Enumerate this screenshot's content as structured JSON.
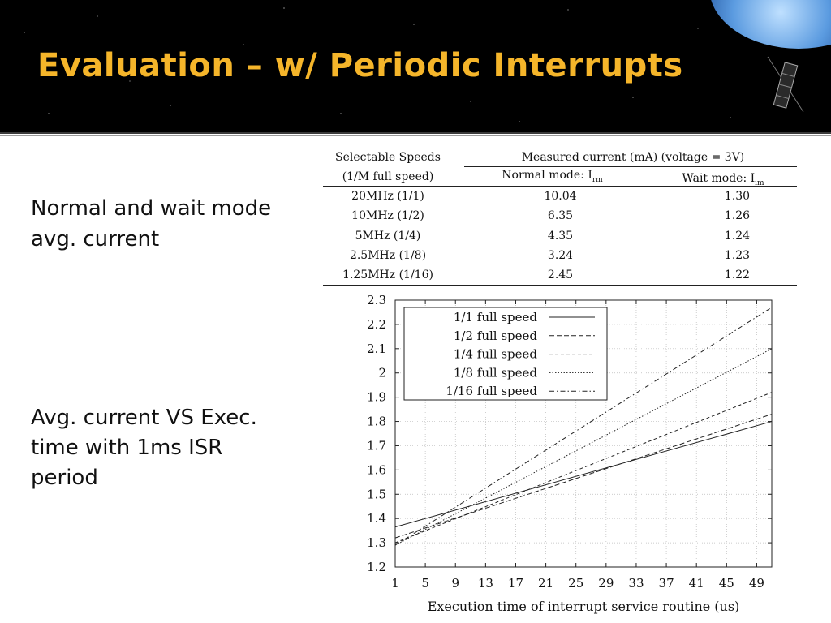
{
  "slide": {
    "title": "Evaluation – w/ Periodic Interrupts",
    "bullets": [
      "Normal and wait mode avg. current",
      "Avg. current VS Exec. time with 1ms ISR period"
    ],
    "satellite_icon": "satellite-icon",
    "earth_icon": "earth-icon"
  },
  "table": {
    "header_speeds_line1": "Selectable Speeds",
    "header_speeds_line2": "(1/M full speed)",
    "header_measured": "Measured current (mA) (voltage = 3V)",
    "header_normal": "Normal mode: I",
    "header_normal_sub": "rm",
    "header_wait": "Wait mode: I",
    "header_wait_sub": "im",
    "rows": [
      {
        "speed": "20MHz  (1/1)",
        "normal": "10.04",
        "wait": "1.30"
      },
      {
        "speed": "10MHz  (1/2)",
        "normal": "6.35",
        "wait": "1.26"
      },
      {
        "speed": "5MHz   (1/4)",
        "normal": "4.35",
        "wait": "1.24"
      },
      {
        "speed": "2.5MHz  (1/8)",
        "normal": "3.24",
        "wait": "1.23"
      },
      {
        "speed": "1.25MHz (1/16)",
        "normal": "2.45",
        "wait": "1.22"
      }
    ]
  },
  "chart_data": {
    "type": "line",
    "title": "",
    "xlabel": "Execution time of interrupt service routine (us)",
    "ylabel": "",
    "xlim": [
      1,
      51
    ],
    "ylim": [
      1.2,
      2.3
    ],
    "xticks": [
      1,
      5,
      9,
      13,
      17,
      21,
      25,
      29,
      33,
      37,
      41,
      45,
      49
    ],
    "yticks": [
      "1.2",
      "1.3",
      "1.4",
      "1.5",
      "1.6",
      "1.7",
      "1.8",
      "1.9",
      "2",
      "2.1",
      "2.2",
      "2.3"
    ],
    "grid": true,
    "legend_position": "top-left",
    "series": [
      {
        "name": "1/1 full speed",
        "dash": "solid",
        "x": [
          1,
          51
        ],
        "y": [
          1.365,
          1.8
        ]
      },
      {
        "name": "1/2 full speed",
        "dash": "long-dash",
        "x": [
          1,
          51
        ],
        "y": [
          1.32,
          1.83
        ]
      },
      {
        "name": "1/4 full speed",
        "dash": "short-dash",
        "x": [
          1,
          51
        ],
        "y": [
          1.3,
          1.92
        ]
      },
      {
        "name": "1/8 full speed",
        "dash": "dot",
        "x": [
          1,
          51
        ],
        "y": [
          1.29,
          2.1
        ]
      },
      {
        "name": "1/16 full speed",
        "dash": "dash-dot",
        "x": [
          1,
          51
        ],
        "y": [
          1.29,
          2.27
        ]
      }
    ]
  }
}
